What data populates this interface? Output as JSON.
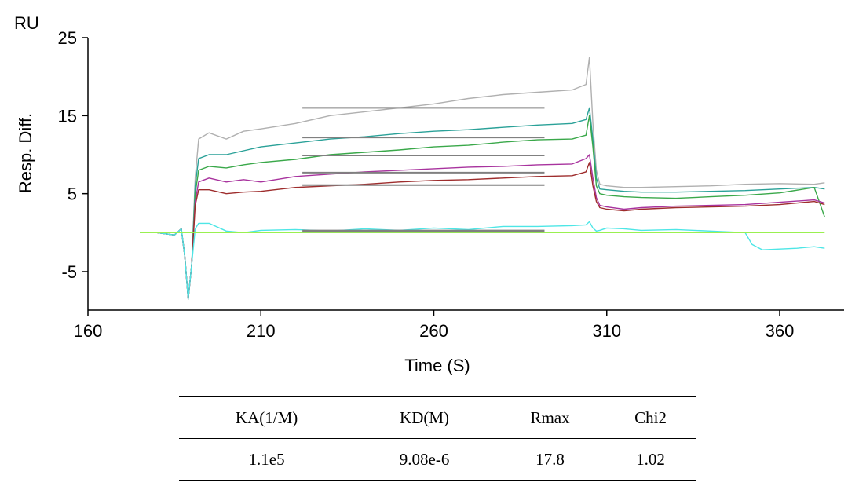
{
  "chart_data": {
    "type": "line",
    "unit_label": "RU",
    "ylabel": "Resp. Diff.",
    "xlabel": "Time (S)",
    "xlim": [
      160,
      380
    ],
    "ylim": [
      -10,
      25
    ],
    "xticks": [
      160,
      210,
      260,
      310,
      360
    ],
    "yticks": [
      25,
      15,
      5,
      -5
    ],
    "xtick_labels": [
      "160",
      "210",
      "260",
      "310",
      "360"
    ],
    "ytick_labels": [
      "25",
      "15",
      "5",
      "-5"
    ],
    "grid": false,
    "series": [
      {
        "color": "#b0b0b0",
        "x": [
          175,
          180,
          185,
          187,
          188,
          189,
          190,
          191,
          192,
          195,
          200,
          205,
          210,
          220,
          230,
          240,
          250,
          260,
          270,
          280,
          290,
          300,
          304,
          305,
          306,
          307,
          308,
          310,
          315,
          320,
          330,
          340,
          350,
          360,
          370,
          373
        ],
        "y": [
          0,
          0,
          -0.3,
          0.5,
          -3,
          -8.5,
          -4,
          7,
          12,
          12.8,
          12,
          13,
          13.3,
          14,
          15,
          15.5,
          16,
          16.5,
          17.2,
          17.7,
          18,
          18.3,
          19,
          22.5,
          14,
          8,
          6.2,
          6,
          5.8,
          5.8,
          5.9,
          6,
          6.2,
          6.3,
          6.2,
          6.4
        ]
      },
      {
        "color": "#2aa198",
        "x": [
          175,
          180,
          185,
          187,
          188,
          189,
          190,
          191,
          192,
          195,
          200,
          205,
          210,
          220,
          230,
          240,
          250,
          260,
          270,
          280,
          290,
          300,
          304,
          305,
          306,
          307,
          308,
          310,
          315,
          320,
          330,
          340,
          350,
          360,
          370,
          373
        ],
        "y": [
          0,
          0,
          -0.3,
          0.5,
          -3,
          -8.5,
          -4,
          6,
          9.5,
          10,
          10,
          10.5,
          11,
          11.5,
          12,
          12.3,
          12.7,
          13,
          13.2,
          13.5,
          13.8,
          14,
          14.5,
          16,
          12,
          7,
          5.6,
          5.5,
          5.3,
          5.2,
          5.2,
          5.3,
          5.4,
          5.6,
          5.8,
          5.6
        ]
      },
      {
        "color": "#3aa84a",
        "x": [
          175,
          180,
          185,
          187,
          188,
          189,
          190,
          191,
          192,
          195,
          200,
          205,
          210,
          220,
          230,
          240,
          250,
          260,
          270,
          280,
          290,
          300,
          304,
          305,
          306,
          307,
          308,
          310,
          315,
          320,
          330,
          340,
          350,
          360,
          370,
          373
        ],
        "y": [
          0,
          0,
          -0.3,
          0.5,
          -3,
          -8.5,
          -4,
          5,
          8,
          8.5,
          8.3,
          8.7,
          9,
          9.4,
          10,
          10.3,
          10.6,
          11,
          11.2,
          11.6,
          11.9,
          12,
          12.5,
          15,
          11,
          6,
          5,
          4.8,
          4.6,
          4.5,
          4.4,
          4.6,
          4.8,
          5.1,
          5.8,
          2
        ]
      },
      {
        "color": "#a8339e",
        "x": [
          175,
          180,
          185,
          187,
          188,
          189,
          190,
          191,
          192,
          195,
          200,
          205,
          210,
          220,
          230,
          240,
          250,
          260,
          270,
          280,
          290,
          300,
          304,
          305,
          306,
          307,
          308,
          310,
          315,
          320,
          330,
          340,
          350,
          360,
          370,
          373
        ],
        "y": [
          0,
          0,
          -0.3,
          0.5,
          -3,
          -8.5,
          -4,
          4,
          6.5,
          7,
          6.5,
          6.8,
          6.5,
          7.2,
          7.5,
          7.8,
          8,
          8.2,
          8.4,
          8.5,
          8.7,
          8.8,
          9.5,
          10,
          7,
          4.5,
          3.5,
          3.3,
          3,
          3.2,
          3.4,
          3.5,
          3.6,
          3.9,
          4.2,
          3.8
        ]
      },
      {
        "color": "#9e2d2d",
        "x": [
          175,
          180,
          185,
          187,
          188,
          189,
          190,
          191,
          192,
          195,
          200,
          205,
          210,
          220,
          230,
          240,
          250,
          260,
          270,
          280,
          290,
          300,
          304,
          305,
          306,
          307,
          308,
          310,
          315,
          320,
          330,
          340,
          350,
          360,
          370,
          373
        ],
        "y": [
          0,
          0,
          -0.3,
          0.5,
          -3,
          -8.5,
          -4,
          3.5,
          5.5,
          5.5,
          5,
          5.2,
          5.3,
          5.8,
          6,
          6.2,
          6.5,
          6.7,
          6.8,
          7,
          7.2,
          7.3,
          7.8,
          9,
          6,
          4,
          3.2,
          3,
          2.8,
          3,
          3.2,
          3.3,
          3.4,
          3.6,
          4,
          3.6
        ]
      },
      {
        "color": "#4de6e6",
        "x": [
          175,
          180,
          185,
          187,
          188,
          189,
          190,
          191,
          192,
          195,
          200,
          205,
          210,
          220,
          230,
          240,
          250,
          260,
          270,
          280,
          290,
          300,
          304,
          305,
          306,
          307,
          308,
          310,
          315,
          320,
          330,
          340,
          350,
          352,
          355,
          360,
          365,
          370,
          373
        ],
        "y": [
          0,
          0,
          -0.3,
          0.5,
          -3,
          -8.5,
          -4,
          0.5,
          1.2,
          1.2,
          0.2,
          0,
          0.3,
          0.4,
          0.2,
          0.5,
          0.3,
          0.6,
          0.4,
          0.8,
          0.8,
          0.9,
          1,
          1.4,
          0.6,
          0.2,
          0.3,
          0.6,
          0.5,
          0.3,
          0.4,
          0.2,
          0,
          -1.5,
          -2.2,
          -2.1,
          -2,
          -1.8,
          -2
        ]
      },
      {
        "color": "#9af050",
        "x": [
          175,
          373
        ],
        "y": [
          0,
          0
        ]
      }
    ],
    "fit_lines": [
      {
        "color": "#808080",
        "x": [
          222,
          292
        ],
        "y": [
          16,
          16
        ]
      },
      {
        "color": "#808080",
        "x": [
          222,
          292
        ],
        "y": [
          12.2,
          12.2
        ]
      },
      {
        "color": "#808080",
        "x": [
          222,
          292
        ],
        "y": [
          9.9,
          9.9
        ]
      },
      {
        "color": "#808080",
        "x": [
          222,
          292
        ],
        "y": [
          7.7,
          7.7
        ]
      },
      {
        "color": "#808080",
        "x": [
          222,
          292
        ],
        "y": [
          6.1,
          6.1
        ]
      },
      {
        "color": "#808080",
        "x": [
          222,
          292
        ],
        "y": [
          0.2,
          0.2
        ]
      }
    ]
  },
  "table": {
    "headers": [
      "KA(1/M)",
      "KD(M)",
      "Rmax",
      "Chi2"
    ],
    "rows": [
      [
        "1.1e5",
        "9.08e-6",
        "17.8",
        "1.02"
      ]
    ]
  }
}
